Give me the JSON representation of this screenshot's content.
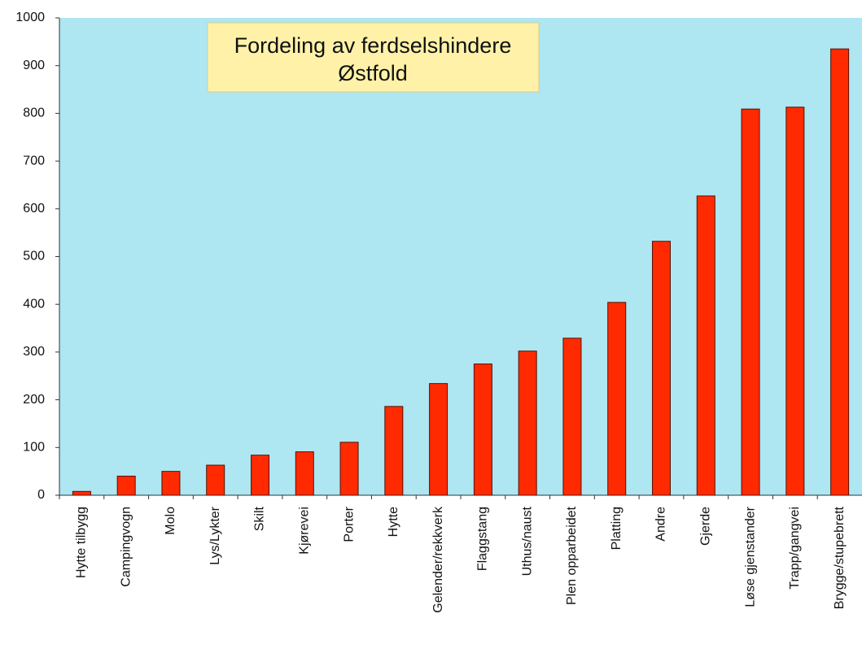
{
  "chart_data": {
    "type": "bar",
    "title": [
      "Fordeling av ferdselshindere",
      "Østfold"
    ],
    "categories": [
      "Hytte tilbygg",
      "Campingvogn",
      "Molo",
      "Lys/Lykter",
      "Skilt",
      "Kjørevei",
      "Porter",
      "Hytte",
      "Gelender/rekkverk",
      "Flaggstang",
      "Uthus/naust",
      "Plen opparbeidet",
      "Platting",
      "Andre",
      "Gjerde",
      "Løse gjenstander",
      "Trapp/gangvei",
      "Brygge/stupebrett"
    ],
    "values": [
      8,
      40,
      50,
      63,
      84,
      91,
      111,
      186,
      234,
      275,
      302,
      329,
      404,
      532,
      627,
      809,
      813,
      935
    ],
    "color": "#ff2a00",
    "ylim": [
      0,
      1000
    ],
    "yticks": [
      0,
      100,
      200,
      300,
      400,
      500,
      600,
      700,
      800,
      900,
      1000
    ],
    "grid": false
  }
}
